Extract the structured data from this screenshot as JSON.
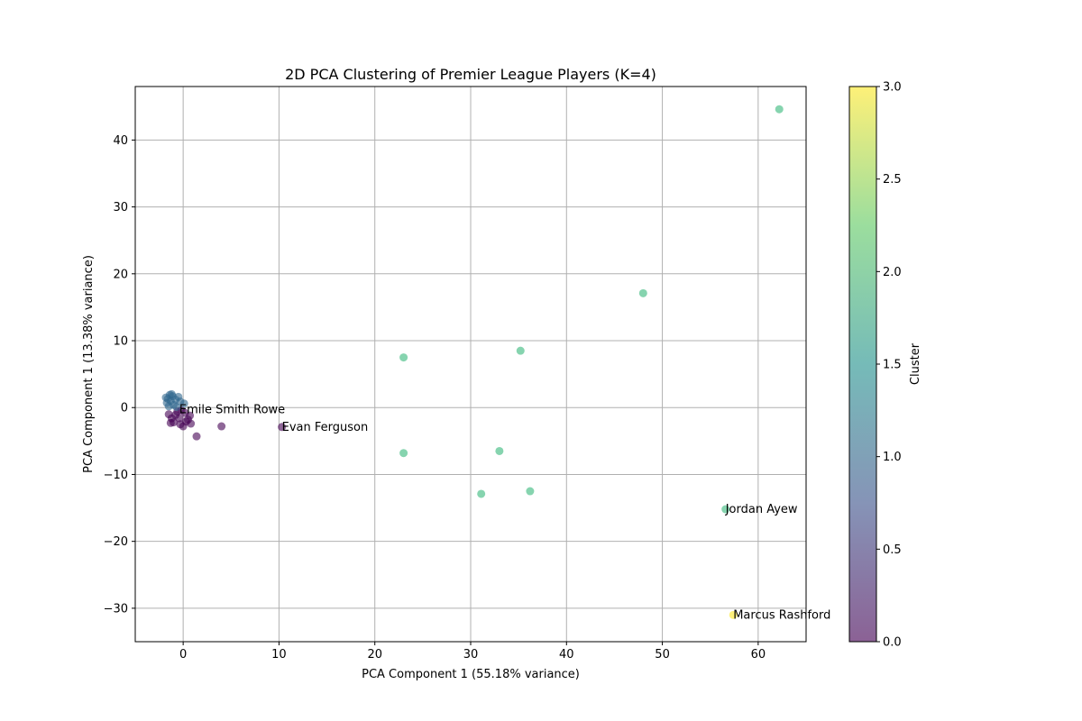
{
  "chart_data": {
    "type": "scatter",
    "title": "2D PCA Clustering of Premier League Players (K=4)",
    "xlabel": "PCA Component 1 (55.18% variance)",
    "ylabel": "PCA Component 1 (13.38% variance)",
    "xlim": [
      -5,
      65
    ],
    "ylim": [
      -35,
      48
    ],
    "xticks": [
      0,
      10,
      20,
      30,
      40,
      50,
      60
    ],
    "yticks": [
      -30,
      -20,
      -10,
      0,
      10,
      20,
      30,
      40
    ],
    "grid": true,
    "colorbar": {
      "label": "Cluster",
      "min": 0.0,
      "max": 3.0,
      "ticks": [
        "0.0",
        "0.5",
        "1.0",
        "1.5",
        "2.0",
        "2.5",
        "3.0"
      ],
      "colormap": [
        "#440154",
        "#3b528b",
        "#21918c",
        "#5ec962",
        "#fde725"
      ]
    },
    "cluster_colors": {
      "0": "#440154",
      "1": "#31688e",
      "2": "#35b779",
      "3": "#fde725"
    },
    "points": [
      {
        "x": 62.2,
        "y": 44.6,
        "cluster": 2
      },
      {
        "x": 48.0,
        "y": 17.1,
        "cluster": 2
      },
      {
        "x": 35.2,
        "y": 8.5,
        "cluster": 2
      },
      {
        "x": 23.0,
        "y": 7.5,
        "cluster": 2
      },
      {
        "x": 23.0,
        "y": -6.8,
        "cluster": 2
      },
      {
        "x": 33.0,
        "y": -6.5,
        "cluster": 2
      },
      {
        "x": 36.2,
        "y": -12.5,
        "cluster": 2
      },
      {
        "x": 31.1,
        "y": -12.9,
        "cluster": 2
      },
      {
        "x": 56.6,
        "y": -15.2,
        "cluster": 2
      },
      {
        "x": 57.4,
        "y": -31.0,
        "cluster": 3
      },
      {
        "x": 10.3,
        "y": -2.9,
        "cluster": 0
      },
      {
        "x": 4.0,
        "y": -2.8,
        "cluster": 0
      },
      {
        "x": 1.4,
        "y": -4.3,
        "cluster": 0
      },
      {
        "x": 0.7,
        "y": -1.2,
        "cluster": 0
      },
      {
        "x": 0.8,
        "y": -2.4,
        "cluster": 0
      },
      {
        "x": 0.3,
        "y": -2.1,
        "cluster": 0
      },
      {
        "x": 0.0,
        "y": -2.8,
        "cluster": 0
      },
      {
        "x": -0.4,
        "y": -1.6,
        "cluster": 0
      },
      {
        "x": -0.3,
        "y": -2.5,
        "cluster": 0
      },
      {
        "x": -0.8,
        "y": -1.1,
        "cluster": 0
      },
      {
        "x": -1.0,
        "y": -2.2,
        "cluster": 0
      },
      {
        "x": -1.3,
        "y": -2.3,
        "cluster": 0
      },
      {
        "x": -1.5,
        "y": -1.0,
        "cluster": 0
      },
      {
        "x": -1.2,
        "y": -1.6,
        "cluster": 0
      },
      {
        "x": -0.6,
        "y": -0.6,
        "cluster": 0
      },
      {
        "x": 0.2,
        "y": -0.8,
        "cluster": 0
      },
      {
        "x": 0.5,
        "y": -1.8,
        "cluster": 0
      },
      {
        "x": -0.2,
        "y": -0.4,
        "cluster": 0
      },
      {
        "x": -1.4,
        "y": 1.9,
        "cluster": 1
      },
      {
        "x": -1.6,
        "y": 1.3,
        "cluster": 1
      },
      {
        "x": -1.7,
        "y": 0.7,
        "cluster": 1
      },
      {
        "x": -1.5,
        "y": 0.2,
        "cluster": 1
      },
      {
        "x": -1.1,
        "y": 1.7,
        "cluster": 1
      },
      {
        "x": -0.8,
        "y": 1.2,
        "cluster": 1
      },
      {
        "x": -0.5,
        "y": 1.6,
        "cluster": 1
      },
      {
        "x": -0.3,
        "y": 0.9,
        "cluster": 1
      },
      {
        "x": 0.1,
        "y": 0.6,
        "cluster": 1
      },
      {
        "x": -1.0,
        "y": 0.4,
        "cluster": 1
      },
      {
        "x": -1.3,
        "y": 1.0,
        "cluster": 1
      },
      {
        "x": -0.7,
        "y": 0.1,
        "cluster": 1
      },
      {
        "x": -1.8,
        "y": 1.5,
        "cluster": 1
      },
      {
        "x": -1.2,
        "y": 2.0,
        "cluster": 1
      }
    ],
    "annotations": [
      {
        "text": "Emile Smith Rowe",
        "x": -0.4,
        "y": -0.3
      },
      {
        "text": "Evan Ferguson",
        "x": 10.3,
        "y": -2.9
      },
      {
        "text": "Jordan Ayew",
        "x": 56.6,
        "y": -15.2
      },
      {
        "text": "Marcus Rashford",
        "x": 57.4,
        "y": -31.0
      }
    ]
  }
}
